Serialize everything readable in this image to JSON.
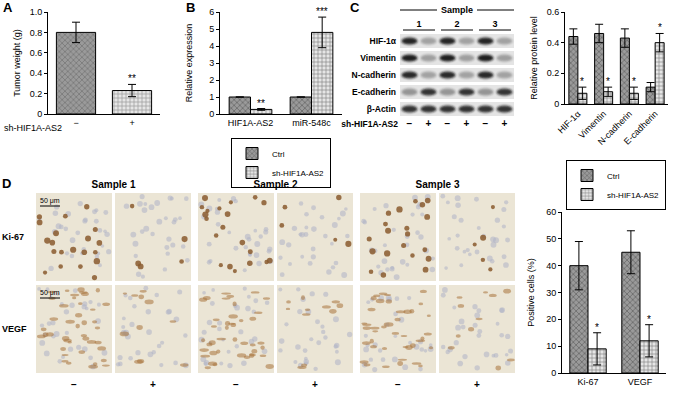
{
  "panel_labels": [
    "A",
    "B",
    "C",
    "D"
  ],
  "chart_data": [
    {
      "type": "bar",
      "categories": [
        "−",
        "+"
      ],
      "values": [
        0.8,
        0.23
      ],
      "errors": [
        0.1,
        0.06
      ],
      "colors": [
        "#9a9a9a",
        "#e6e6e6"
      ],
      "y_label": "Tumor weight (g)",
      "x_label": "sh-HIF1A-AS2",
      "ylim": [
        0,
        1
      ],
      "yticks": [
        0,
        0.2,
        0.4,
        0.6,
        0.8,
        {
          "value": 1,
          "label": "1.0"
        }
      ],
      "annotations": [
        {
          "category": "+",
          "text": "**"
        }
      ]
    },
    {
      "type": "bar",
      "categories": [
        "HIF1A-AS2",
        "miR-548c"
      ],
      "series": [
        {
          "name": "Ctrl",
          "color": "#9a9a9a",
          "values": [
            1,
            1
          ],
          "errors": [
            0,
            0
          ]
        },
        {
          "name": "sh-HIF1A-AS2",
          "color": "#e6e6e6",
          "values": [
            0.27,
            4.8
          ],
          "errors": [
            0.05,
            0.9
          ]
        }
      ],
      "y_label": "Relative expression",
      "ylim": [
        0,
        6
      ],
      "yticks": [
        0,
        1,
        2,
        3,
        4,
        5,
        6
      ],
      "legend": "bottom",
      "annotations": [
        {
          "series": 1,
          "category": "HIF1A-AS2",
          "text": "**"
        },
        {
          "series": 1,
          "category": "miR-548c",
          "text": "***"
        }
      ]
    },
    {
      "type": "bar",
      "categories": [
        "HIF-1α",
        "Vimentin",
        "N-cadherin",
        "E-cadherin"
      ],
      "series": [
        {
          "color": "#9a9a9a",
          "values": [
            0.44,
            0.46,
            0.43,
            0.11
          ],
          "errors": [
            0.05,
            0.06,
            0.06,
            0.03
          ]
        },
        {
          "color": "#e6e6e6",
          "values": [
            0.07,
            0.08,
            0.07,
            0.4
          ],
          "errors": [
            0.04,
            0.03,
            0.04,
            0.06
          ]
        }
      ],
      "y_label": "Relative protein level",
      "ylim": [
        0,
        0.6
      ],
      "yticks": [
        0,
        0.2,
        0.4,
        0.6
      ],
      "annotations": [
        {
          "series": 1,
          "category": "HIF-1α",
          "text": "*"
        },
        {
          "series": 1,
          "category": "Vimentin",
          "text": "*"
        },
        {
          "series": 1,
          "category": "N-cadherin",
          "text": "*"
        },
        {
          "series": 1,
          "category": "E-cadherin",
          "text": "*"
        }
      ]
    },
    {
      "type": "bar",
      "categories": [
        "Ki-67",
        "VEGF"
      ],
      "series": [
        {
          "name": "Ctrl",
          "color": "#9a9a9a",
          "values": [
            40,
            45
          ],
          "errors": [
            9,
            8
          ]
        },
        {
          "name": "sh-HIF1A-AS2",
          "color": "#e6e6e6",
          "values": [
            9,
            12
          ],
          "errors": [
            6,
            6
          ]
        }
      ],
      "y_label": "Positive cells (%)",
      "ylim": [
        0,
        60
      ],
      "yticks": [
        0,
        10,
        20,
        30,
        40,
        50,
        60
      ],
      "legend": "top right",
      "annotations": [
        {
          "series": 1,
          "category": "Ki-67",
          "text": "*"
        },
        {
          "series": 1,
          "category": "VEGF",
          "text": "*"
        }
      ]
    }
  ],
  "blot": {
    "header": "Sample",
    "samples": [
      "1",
      "2",
      "3"
    ],
    "rows": [
      "HIF-1α",
      "Vimentin",
      "N-cadherin",
      "E-cadherin",
      "β-Actin"
    ],
    "treatment_label": "sh-HIF1A-AS2",
    "lanes": [
      "−",
      "+",
      "−",
      "+",
      "−",
      "+"
    ]
  },
  "ihc": {
    "samples": [
      "Sample 1",
      "Sample 2",
      "Sample 3"
    ],
    "rows": [
      "Ki-67",
      "VEGF"
    ],
    "scale_bar": "50 μm",
    "lanes": [
      "−",
      "+",
      "−",
      "+",
      "−",
      "+"
    ]
  }
}
